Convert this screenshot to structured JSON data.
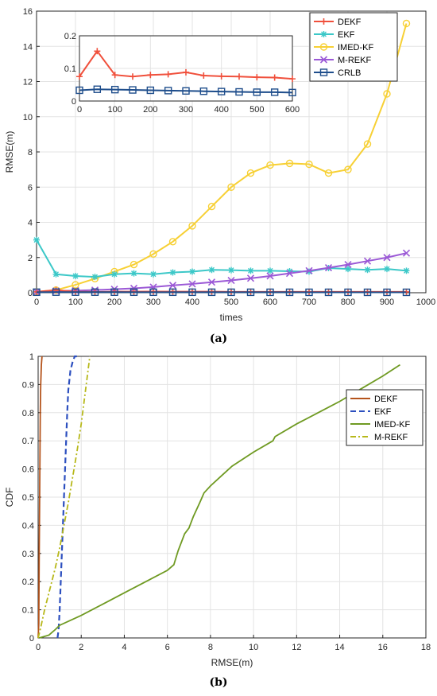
{
  "chart_data": [
    {
      "type": "line",
      "panel": "(a)",
      "xlabel": "times",
      "ylabel": "RMSE(m)",
      "xlim": [
        0,
        1000
      ],
      "ylim": [
        0,
        16
      ],
      "xticks": [
        0,
        100,
        200,
        300,
        400,
        500,
        600,
        700,
        800,
        900,
        1000
      ],
      "yticks": [
        0,
        2,
        4,
        6,
        8,
        10,
        12,
        14,
        16
      ],
      "grid": true,
      "legend": "top-right",
      "x": [
        0,
        50,
        100,
        150,
        200,
        250,
        300,
        350,
        400,
        450,
        500,
        550,
        600,
        650,
        700,
        750,
        800,
        850,
        900,
        950
      ],
      "series": [
        {
          "name": "DEKF",
          "color": "#f0503c",
          "marker": "plus",
          "values": [
            0.05,
            0.15,
            0.06,
            0.05,
            0.06,
            0.06,
            0.07,
            0.06,
            0.06,
            0.06,
            0.05,
            0.05,
            0.05,
            0.05,
            0.05,
            0.05,
            0.05,
            0.05,
            0.05,
            0.05
          ]
        },
        {
          "name": "EKF",
          "color": "#3cc8c8",
          "marker": "star",
          "values": [
            3.0,
            1.05,
            0.95,
            0.9,
            1.05,
            1.1,
            1.05,
            1.15,
            1.2,
            1.3,
            1.28,
            1.25,
            1.25,
            1.22,
            1.2,
            1.4,
            1.35,
            1.3,
            1.35,
            1.25
          ]
        },
        {
          "name": "IMED-KF",
          "color": "#f7d034",
          "marker": "circle",
          "values": [
            0.05,
            0.15,
            0.45,
            0.8,
            1.2,
            1.6,
            2.2,
            2.9,
            3.8,
            4.9,
            6.0,
            6.8,
            7.25,
            7.35,
            7.3,
            6.8,
            7.0,
            8.45,
            11.3,
            15.3
          ]
        },
        {
          "name": "M-REKF",
          "color": "#9b59d6",
          "marker": "x",
          "values": [
            0.05,
            0.1,
            0.12,
            0.15,
            0.2,
            0.25,
            0.32,
            0.42,
            0.5,
            0.6,
            0.7,
            0.82,
            0.95,
            1.1,
            1.25,
            1.42,
            1.6,
            1.8,
            2.0,
            2.25
          ]
        },
        {
          "name": "CRLB",
          "color": "#1f4e8c",
          "marker": "square",
          "values": [
            0.03,
            0.035,
            0.034,
            0.033,
            0.032,
            0.031,
            0.03,
            0.03,
            0.029,
            0.028,
            0.027,
            0.027,
            0.026,
            0.026,
            0.025,
            0.025,
            0.025,
            0.024,
            0.024,
            0.024
          ]
        }
      ],
      "inset": {
        "xlim": [
          0,
          600
        ],
        "ylim": [
          0,
          0.2
        ],
        "xticks": [
          0,
          100,
          200,
          300,
          400,
          500,
          600
        ],
        "yticks": [
          0,
          0.1,
          0.2
        ],
        "ytick_labels": [
          "0",
          "0.1",
          "0.2"
        ],
        "x": [
          0,
          50,
          100,
          150,
          200,
          250,
          300,
          350,
          400,
          450,
          500,
          550,
          600
        ],
        "series": [
          {
            "name": "DEKF",
            "color": "#f0503c",
            "marker": "plus",
            "values": [
              0.075,
              0.153,
              0.08,
              0.075,
              0.08,
              0.082,
              0.088,
              0.078,
              0.076,
              0.075,
              0.073,
              0.072,
              0.068
            ]
          },
          {
            "name": "CRLB",
            "color": "#1f4e8c",
            "marker": "square",
            "values": [
              0.033,
              0.036,
              0.035,
              0.034,
              0.033,
              0.032,
              0.031,
              0.03,
              0.029,
              0.028,
              0.027,
              0.027,
              0.026
            ]
          }
        ]
      }
    },
    {
      "type": "line",
      "panel": "(b)",
      "xlabel": "RMSE(m)",
      "ylabel": "CDF",
      "xlim": [
        0,
        18
      ],
      "ylim": [
        0,
        1
      ],
      "xticks": [
        0,
        2,
        4,
        6,
        8,
        10,
        12,
        14,
        16,
        18
      ],
      "yticks": [
        0,
        0.1,
        0.2,
        0.3,
        0.4,
        0.5,
        0.6,
        0.7,
        0.8,
        0.9,
        1
      ],
      "ytick_labels": [
        "0",
        "0.1",
        "0.2",
        "0.3",
        "0.4",
        "0.5",
        "0.6",
        "0.7",
        "0.8",
        "0.9",
        "1"
      ],
      "grid": true,
      "legend": "right",
      "series": [
        {
          "name": "DEKF",
          "color": "#b5541c",
          "dash": "solid",
          "x": [
            0,
            0.03,
            0.05,
            0.08,
            0.1,
            0.12,
            0.15,
            0.18
          ],
          "y": [
            0,
            0.05,
            0.3,
            0.6,
            0.8,
            0.9,
            0.97,
            1.0
          ]
        },
        {
          "name": "EKF",
          "color": "#2c4fbf",
          "dash": "dashed",
          "x": [
            0.9,
            0.95,
            1.0,
            1.05,
            1.1,
            1.15,
            1.2,
            1.25,
            1.3,
            1.35,
            1.4,
            1.5,
            1.6,
            1.7,
            1.8
          ],
          "y": [
            0,
            0.03,
            0.1,
            0.2,
            0.3,
            0.4,
            0.5,
            0.6,
            0.7,
            0.8,
            0.88,
            0.95,
            0.98,
            1.0,
            1.0
          ]
        },
        {
          "name": "IMED-KF",
          "color": "#6f9a22",
          "dash": "solid",
          "x": [
            0.05,
            0.5,
            0.8,
            1.0,
            2,
            3,
            4,
            5,
            6,
            6.3,
            6.5,
            6.8,
            7.0,
            7.2,
            7.5,
            7.7,
            8,
            8.5,
            9,
            10,
            10.9,
            11,
            12,
            13,
            14,
            15,
            16,
            16.8
          ],
          "y": [
            0,
            0.01,
            0.03,
            0.045,
            0.08,
            0.12,
            0.16,
            0.2,
            0.24,
            0.26,
            0.31,
            0.37,
            0.39,
            0.43,
            0.48,
            0.515,
            0.54,
            0.575,
            0.61,
            0.66,
            0.7,
            0.715,
            0.76,
            0.8,
            0.84,
            0.885,
            0.93,
            0.97
          ]
        },
        {
          "name": "M-REKF",
          "color": "#b7b81a",
          "dash": "dashdot",
          "x": [
            0,
            0.1,
            0.3,
            0.5,
            0.8,
            1.0,
            1.2,
            1.4,
            1.6,
            1.8,
            2.0,
            2.2,
            2.4
          ],
          "y": [
            0,
            0.03,
            0.1,
            0.16,
            0.25,
            0.32,
            0.4,
            0.48,
            0.57,
            0.66,
            0.76,
            0.88,
            1.0
          ]
        }
      ]
    }
  ],
  "captions": {
    "a": "(a)",
    "b": "(b)"
  }
}
